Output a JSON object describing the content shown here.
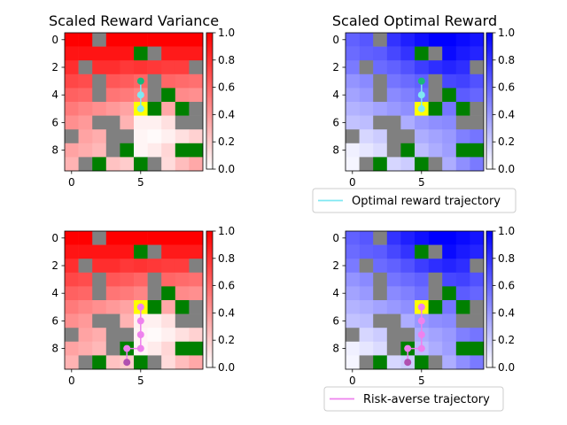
{
  "colors": {
    "wall": "#808080",
    "goal": "#008000",
    "start": "#ffff00",
    "optimal_trajectory": "#7fe8f2",
    "risk_averse_trajectory": "#ee82ee",
    "variance_colormap": [
      "#ffffff",
      "#ff0000"
    ],
    "reward_colormap": [
      "#ffffff",
      "#0000ff"
    ]
  },
  "chart_data": [
    {
      "type": "heatmap",
      "panel": "top-left",
      "title": "Scaled Reward Variance",
      "colormap": "white-to-red",
      "grid": false,
      "xticks": [
        0,
        5
      ],
      "yticks": [
        0,
        2,
        4,
        6,
        8
      ],
      "colorbar_ticks": [
        "0.0",
        "0.2",
        "0.4",
        "0.6",
        "0.8",
        "1.0"
      ],
      "clim": [
        0,
        1
      ],
      "matrix_ref": "variance",
      "trajectory": "optimal",
      "legend": ""
    },
    {
      "type": "heatmap",
      "panel": "top-right",
      "title": "Scaled Optimal Reward",
      "colormap": "white-to-blue",
      "grid": false,
      "xticks": [
        0,
        5
      ],
      "yticks": [
        0,
        2,
        4,
        6,
        8
      ],
      "colorbar_ticks": [
        "0.0",
        "0.2",
        "0.4",
        "0.6",
        "0.8",
        "1.0"
      ],
      "clim": [
        0,
        1
      ],
      "matrix_ref": "reward",
      "trajectory": "optimal",
      "legend": "Optimal reward trajectory"
    },
    {
      "type": "heatmap",
      "panel": "bottom-left",
      "title": "",
      "colormap": "white-to-red",
      "grid": false,
      "xticks": [
        0,
        5
      ],
      "yticks": [
        0,
        2,
        4,
        6,
        8
      ],
      "colorbar_ticks": [
        "0.0",
        "0.2",
        "0.4",
        "0.6",
        "0.8",
        "1.0"
      ],
      "clim": [
        0,
        1
      ],
      "matrix_ref": "variance",
      "trajectory": "risk_averse",
      "legend": ""
    },
    {
      "type": "heatmap",
      "panel": "bottom-right",
      "title": "",
      "colormap": "white-to-blue",
      "grid": false,
      "xticks": [
        0,
        5
      ],
      "yticks": [
        0,
        2,
        4,
        6,
        8
      ],
      "colorbar_ticks": [
        "0.0",
        "0.2",
        "0.4",
        "0.6",
        "0.8",
        "1.0"
      ],
      "clim": [
        0,
        1
      ],
      "matrix_ref": "reward",
      "trajectory": "risk_averse",
      "legend": "Risk-averse trajectory"
    }
  ],
  "grid_size": [
    10,
    10
  ],
  "walls": [
    [
      0,
      2
    ],
    [
      1,
      6
    ],
    [
      2,
      1
    ],
    [
      2,
      9
    ],
    [
      3,
      2
    ],
    [
      3,
      6
    ],
    [
      4,
      2
    ],
    [
      4,
      6
    ],
    [
      5,
      9
    ],
    [
      6,
      2
    ],
    [
      6,
      3
    ],
    [
      6,
      8
    ],
    [
      6,
      9
    ],
    [
      7,
      0
    ],
    [
      7,
      3
    ],
    [
      7,
      4
    ],
    [
      8,
      3
    ],
    [
      9,
      1
    ],
    [
      9,
      6
    ]
  ],
  "goals": [
    [
      1,
      5
    ],
    [
      4,
      7
    ],
    [
      5,
      6
    ],
    [
      5,
      8
    ],
    [
      8,
      4
    ],
    [
      8,
      8
    ],
    [
      8,
      9
    ],
    [
      9,
      2
    ],
    [
      9,
      5
    ]
  ],
  "start": [
    5,
    5
  ],
  "variance": [
    [
      1.0,
      1.0,
      0.0,
      1.0,
      1.0,
      1.0,
      1.0,
      1.0,
      1.0,
      1.0
    ],
    [
      0.92,
      0.92,
      0.92,
      0.92,
      0.92,
      0.0,
      0.9,
      0.9,
      0.9,
      0.9
    ],
    [
      0.82,
      0.0,
      0.82,
      0.82,
      0.78,
      0.8,
      0.78,
      0.76,
      0.76,
      0.0
    ],
    [
      0.72,
      0.7,
      0.0,
      0.66,
      0.64,
      0.6,
      0.0,
      0.6,
      0.58,
      0.56
    ],
    [
      0.62,
      0.6,
      0.0,
      0.54,
      0.52,
      0.48,
      0.0,
      0.0,
      0.46,
      0.44
    ],
    [
      0.52,
      0.48,
      0.44,
      0.4,
      0.36,
      0.0,
      0.0,
      0.34,
      0.0,
      0.32
    ],
    [
      0.44,
      0.4,
      0.0,
      0.0,
      0.3,
      0.06,
      0.06,
      0.12,
      0.0,
      0.0
    ],
    [
      0.0,
      0.36,
      0.32,
      0.0,
      0.0,
      0.04,
      0.02,
      0.06,
      0.12,
      0.18
    ],
    [
      0.36,
      0.32,
      0.28,
      0.0,
      0.0,
      0.04,
      0.08,
      0.16,
      0.0,
      0.0
    ],
    [
      0.3,
      0.0,
      0.0,
      0.24,
      0.2,
      0.0,
      0.0,
      0.14,
      0.26,
      0.34
    ]
  ],
  "reward": [
    [
      0.62,
      0.66,
      0.0,
      0.8,
      0.88,
      0.94,
      1.0,
      1.0,
      0.96,
      0.92
    ],
    [
      0.58,
      0.62,
      0.64,
      0.72,
      0.8,
      0.0,
      0.92,
      0.96,
      0.9,
      0.86
    ],
    [
      0.52,
      0.0,
      0.58,
      0.62,
      0.68,
      0.76,
      0.82,
      0.86,
      0.82,
      0.0
    ],
    [
      0.42,
      0.46,
      0.0,
      0.54,
      0.58,
      0.62,
      0.0,
      0.72,
      0.74,
      0.68
    ],
    [
      0.36,
      0.4,
      0.0,
      0.46,
      0.5,
      0.56,
      0.0,
      0.0,
      0.64,
      0.6
    ],
    [
      0.3,
      0.32,
      0.36,
      0.4,
      0.44,
      0.0,
      0.0,
      0.54,
      0.0,
      0.52
    ],
    [
      0.24,
      0.26,
      0.0,
      0.0,
      0.32,
      0.4,
      0.44,
      0.46,
      0.0,
      0.0
    ],
    [
      0.0,
      0.16,
      0.2,
      0.0,
      0.0,
      0.32,
      0.36,
      0.4,
      0.5,
      0.54
    ],
    [
      0.06,
      0.1,
      0.14,
      0.0,
      0.0,
      0.26,
      0.32,
      0.38,
      0.0,
      0.0
    ],
    [
      0.04,
      0.0,
      0.0,
      0.16,
      0.2,
      0.0,
      0.0,
      0.32,
      0.44,
      0.52
    ]
  ],
  "trajectories": {
    "optimal": [
      [
        5,
        5
      ],
      [
        4,
        5
      ],
      [
        3,
        5
      ]
    ],
    "risk_averse": [
      [
        5,
        5
      ],
      [
        6,
        5
      ],
      [
        7,
        5
      ],
      [
        8,
        5
      ],
      [
        8,
        4
      ],
      [
        9,
        4
      ]
    ]
  }
}
